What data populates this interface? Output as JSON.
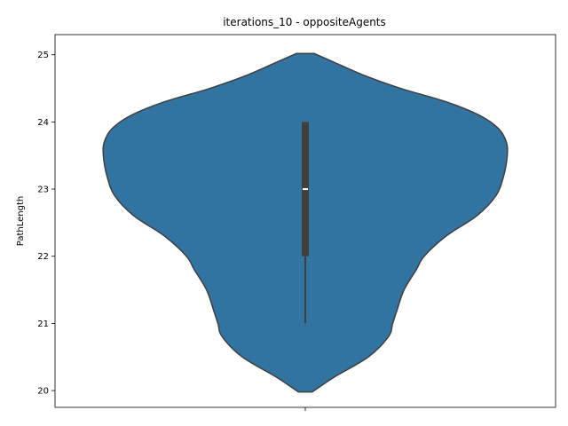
{
  "chart_data": {
    "type": "violin",
    "title": "iterations_10 - oppositeAgents",
    "xlabel": "",
    "ylabel": "PathLength",
    "ylim": [
      19.75,
      25.3
    ],
    "yticks": [
      20,
      21,
      22,
      23,
      24,
      25
    ],
    "xticks": [
      ""
    ],
    "grid": false,
    "legend": "none",
    "colors": {
      "body": "#3274a1",
      "edge": "#3f3f3f",
      "box": "#3f3f3f",
      "median": "#ffffff"
    },
    "violin": {
      "min": 20,
      "max": 25,
      "q1": 22,
      "median": 23,
      "q3": 24,
      "whisker_low": 21,
      "whisker_high": 24,
      "density_profile": [
        [
          19.98,
          0.08
        ],
        [
          20.2,
          0.33
        ],
        [
          20.5,
          0.72
        ],
        [
          20.8,
          0.95
        ],
        [
          21.0,
          1.0
        ],
        [
          21.2,
          1.05
        ],
        [
          21.5,
          1.13
        ],
        [
          21.8,
          1.27
        ],
        [
          22.0,
          1.36
        ],
        [
          22.3,
          1.61
        ],
        [
          22.6,
          1.96
        ],
        [
          22.9,
          2.18
        ],
        [
          23.2,
          2.27
        ],
        [
          23.5,
          2.31
        ],
        [
          23.7,
          2.3
        ],
        [
          23.9,
          2.21
        ],
        [
          24.1,
          1.99
        ],
        [
          24.3,
          1.61
        ],
        [
          24.5,
          1.09
        ],
        [
          24.7,
          0.66
        ],
        [
          24.9,
          0.31
        ],
        [
          25.02,
          0.1
        ]
      ]
    }
  }
}
